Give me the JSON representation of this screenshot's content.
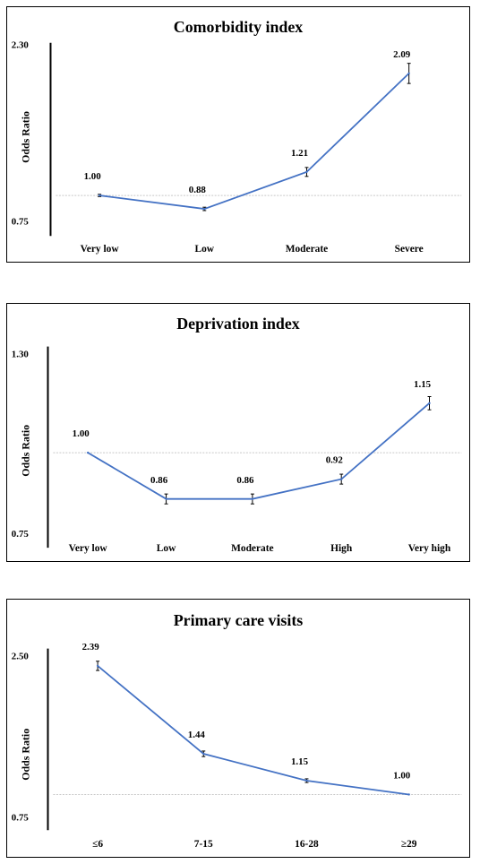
{
  "chart_data": [
    {
      "type": "line",
      "title": "Comorbidity index",
      "ylabel": "Odds Ratio",
      "categories": [
        "Very low",
        "Low",
        "Moderate",
        "Severe"
      ],
      "values": [
        1.0,
        0.88,
        1.21,
        2.09
      ],
      "error": [
        0.01,
        0.015,
        0.04,
        0.09
      ],
      "ylim": [
        0.75,
        2.3
      ],
      "yticks": [
        "2.30",
        "0.75"
      ],
      "reference_line": 1.0,
      "color": "#4472C4"
    },
    {
      "type": "line",
      "title": "Deprivation index",
      "ylabel": "Odds Ratio",
      "categories": [
        "Very low",
        "Low",
        "Moderate",
        "High",
        "Very high"
      ],
      "values": [
        1.0,
        0.86,
        0.86,
        0.92,
        1.15
      ],
      "error": [
        0.0,
        0.015,
        0.015,
        0.015,
        0.02
      ],
      "ylim": [
        0.75,
        1.3
      ],
      "yticks": [
        "1.30",
        "0.75"
      ],
      "reference_line": 1.0,
      "color": "#4472C4"
    },
    {
      "type": "line",
      "title": "Primary care visits",
      "ylabel": "Odds Ratio",
      "categories": [
        "≤6",
        "7-15",
        "16-28",
        "≥29"
      ],
      "values": [
        2.39,
        1.44,
        1.15,
        1.0
      ],
      "error": [
        0.05,
        0.03,
        0.02,
        0.0
      ],
      "ylim": [
        0.75,
        2.5
      ],
      "yticks": [
        "2.50",
        "0.75"
      ],
      "reference_line": 1.0,
      "color": "#4472C4"
    }
  ]
}
